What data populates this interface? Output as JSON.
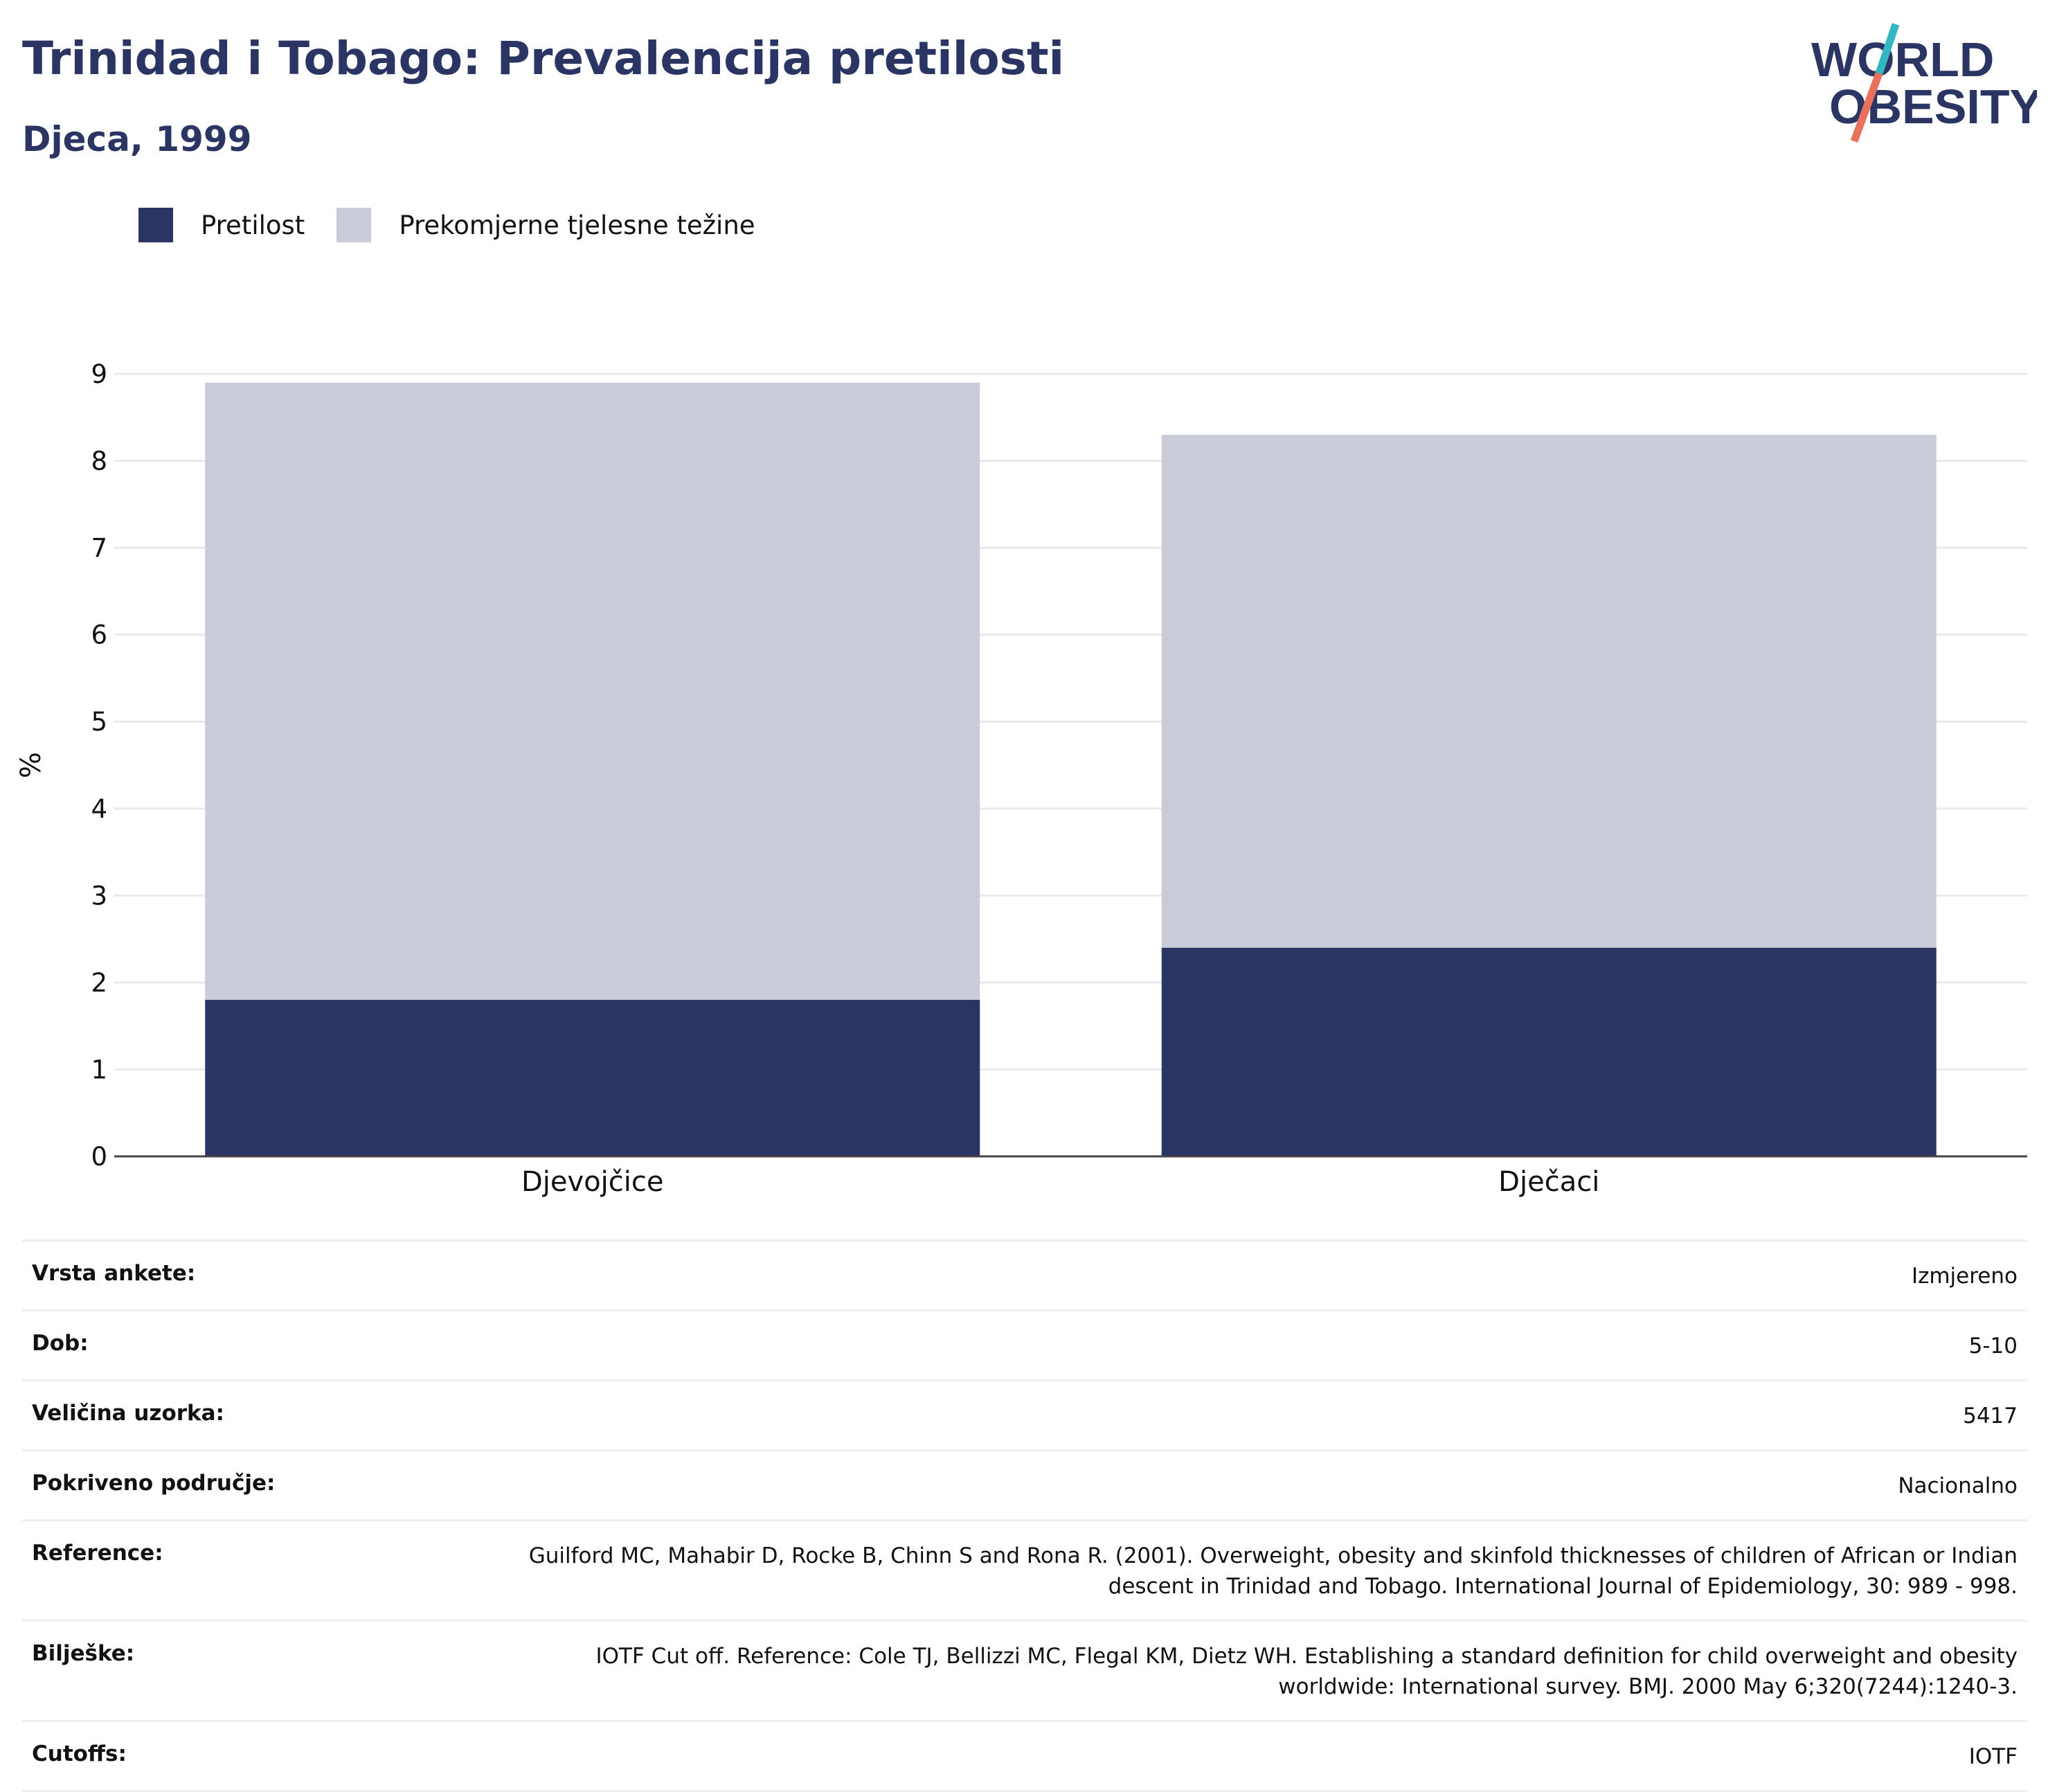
{
  "header": {
    "title": "Trinidad i Tobago: Prevalencija pretilosti",
    "subtitle": "Djeca, 1999"
  },
  "logo": {
    "line1": "WORLD",
    "line2": "OBESITY",
    "accent_colors": [
      "#33b7c0",
      "#e8705c"
    ]
  },
  "legend": [
    {
      "label": "Pretilost",
      "color": "#2a3563"
    },
    {
      "label": "Prekomjerne tjelesne težine",
      "color": "#c9ccd8"
    }
  ],
  "chart_data": {
    "type": "bar",
    "stacked": true,
    "categories": [
      "Djevojčice",
      "Dječaci"
    ],
    "series": [
      {
        "name": "Pretilost",
        "color": "#2a3563",
        "values": [
          1.8,
          2.4
        ]
      },
      {
        "name": "Prekomjerne tjelesne težine",
        "color": "#c9ccd8",
        "values": [
          7.1,
          5.9
        ]
      }
    ],
    "ylabel": "%",
    "xlabel": "",
    "ylim": [
      0,
      9
    ],
    "yticks": [
      0,
      1,
      2,
      3,
      4,
      5,
      6,
      7,
      8,
      9
    ],
    "grid": true,
    "legend_position": "top-left"
  },
  "metadata": [
    {
      "key": "Vrsta ankete:",
      "value": "Izmjereno"
    },
    {
      "key": "Dob:",
      "value": "5-10"
    },
    {
      "key": "Veličina uzorka:",
      "value": "5417"
    },
    {
      "key": "Pokriveno područje:",
      "value": "Nacionalno"
    },
    {
      "key": "Reference:",
      "value": "Guilford MC, Mahabir D, Rocke B, Chinn S and Rona R. (2001). Overweight, obesity and skinfold thicknesses of children of African or Indian descent in Trinidad and Tobago. International Journal of Epidemiology, 30: 989 - 998."
    },
    {
      "key": "Bilješke:",
      "value": "IOTF Cut off. Reference: Cole TJ, Bellizzi MC, Flegal KM, Dietz WH. Establishing a standard definition for child overweight and obesity worldwide: International survey. BMJ. 2000 May 6;320(7244):1240-3."
    },
    {
      "key": "Cutoffs:",
      "value": "IOTF"
    }
  ]
}
